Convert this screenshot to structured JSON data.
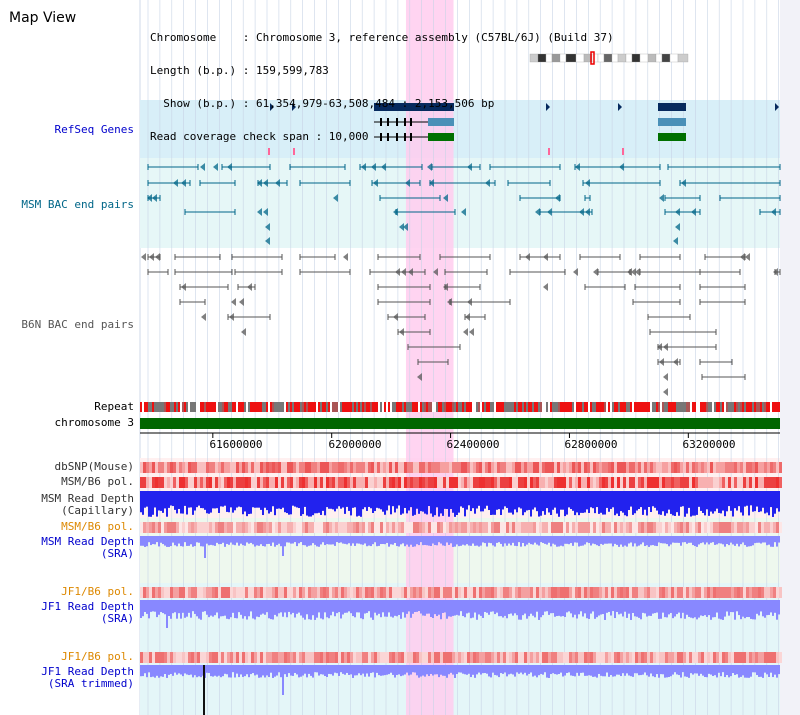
{
  "view": {
    "title": "Map View",
    "info_lines": [
      "Chromosome    : Chromosome 3, reference assembly (C57BL/6J) (Build 37)",
      "Length (b.p.) : 159,599,783",
      "  Show (b.p.) : 61,354,979-63,508,484 : 2,153,506 bp",
      "Read coverage check span : 10,000"
    ]
  },
  "colors": {
    "refseq": "#0000cc",
    "bac": "#006688",
    "b6n": "#555555",
    "pol_orange": "#dd8800",
    "highlight": "#ffccee",
    "depth_blue": "#2222ee",
    "depth_light": "#8888ff"
  },
  "tracks": [
    {
      "id": "refseq",
      "label": "RefSeq Genes",
      "color": "#0000cc"
    },
    {
      "id": "msm-bac",
      "label": "MSM BAC end pairs",
      "color": "#006688"
    },
    {
      "id": "b6n-bac",
      "label": "B6N BAC end pairs",
      "color": "#555555"
    },
    {
      "id": "repeat",
      "label": "Repeat",
      "color": "#000000"
    },
    {
      "id": "chromosome",
      "label": "chromosome 3",
      "color": "#000000"
    },
    {
      "id": "dbsnp",
      "label": "dbSNP(Mouse)",
      "color": "#333333"
    },
    {
      "id": "msm-b6-pol",
      "label": "MSM/B6 pol.",
      "color": "#333333"
    },
    {
      "id": "msm-depth-cap",
      "label": "MSM Read Depth\n(Capillary)",
      "color": "#333333"
    },
    {
      "id": "msm-b6-pol-sra",
      "label": "MSM/B6 pol.",
      "color": "#dd8800"
    },
    {
      "id": "msm-depth-sra",
      "label": "MSM Read Depth\n(SRA)",
      "color": "#0000cc"
    },
    {
      "id": "jf1-b6-pol",
      "label": "JF1/B6 pol.",
      "color": "#dd8800"
    },
    {
      "id": "jf1-depth-sra",
      "label": "JF1 Read Depth\n(SRA)",
      "color": "#0000cc"
    },
    {
      "id": "jf1-b6-pol-2",
      "label": "JF1/B6 pol.",
      "color": "#dd8800"
    },
    {
      "id": "jf1-depth-trim",
      "label": "JF1 Read Depth\n(SRA trimmed)",
      "color": "#0000cc"
    }
  ],
  "axis": {
    "ticks": [
      {
        "label": "61600000",
        "value": 61600000
      },
      {
        "label": "62000000",
        "value": 62000000
      },
      {
        "label": "62400000",
        "value": 62400000
      },
      {
        "label": "62800000",
        "value": 62800000
      },
      {
        "label": "63200000",
        "value": 63200000
      }
    ],
    "range": [
      61354979,
      63508484
    ],
    "highlight_range": [
      62250000,
      62410000
    ]
  }
}
